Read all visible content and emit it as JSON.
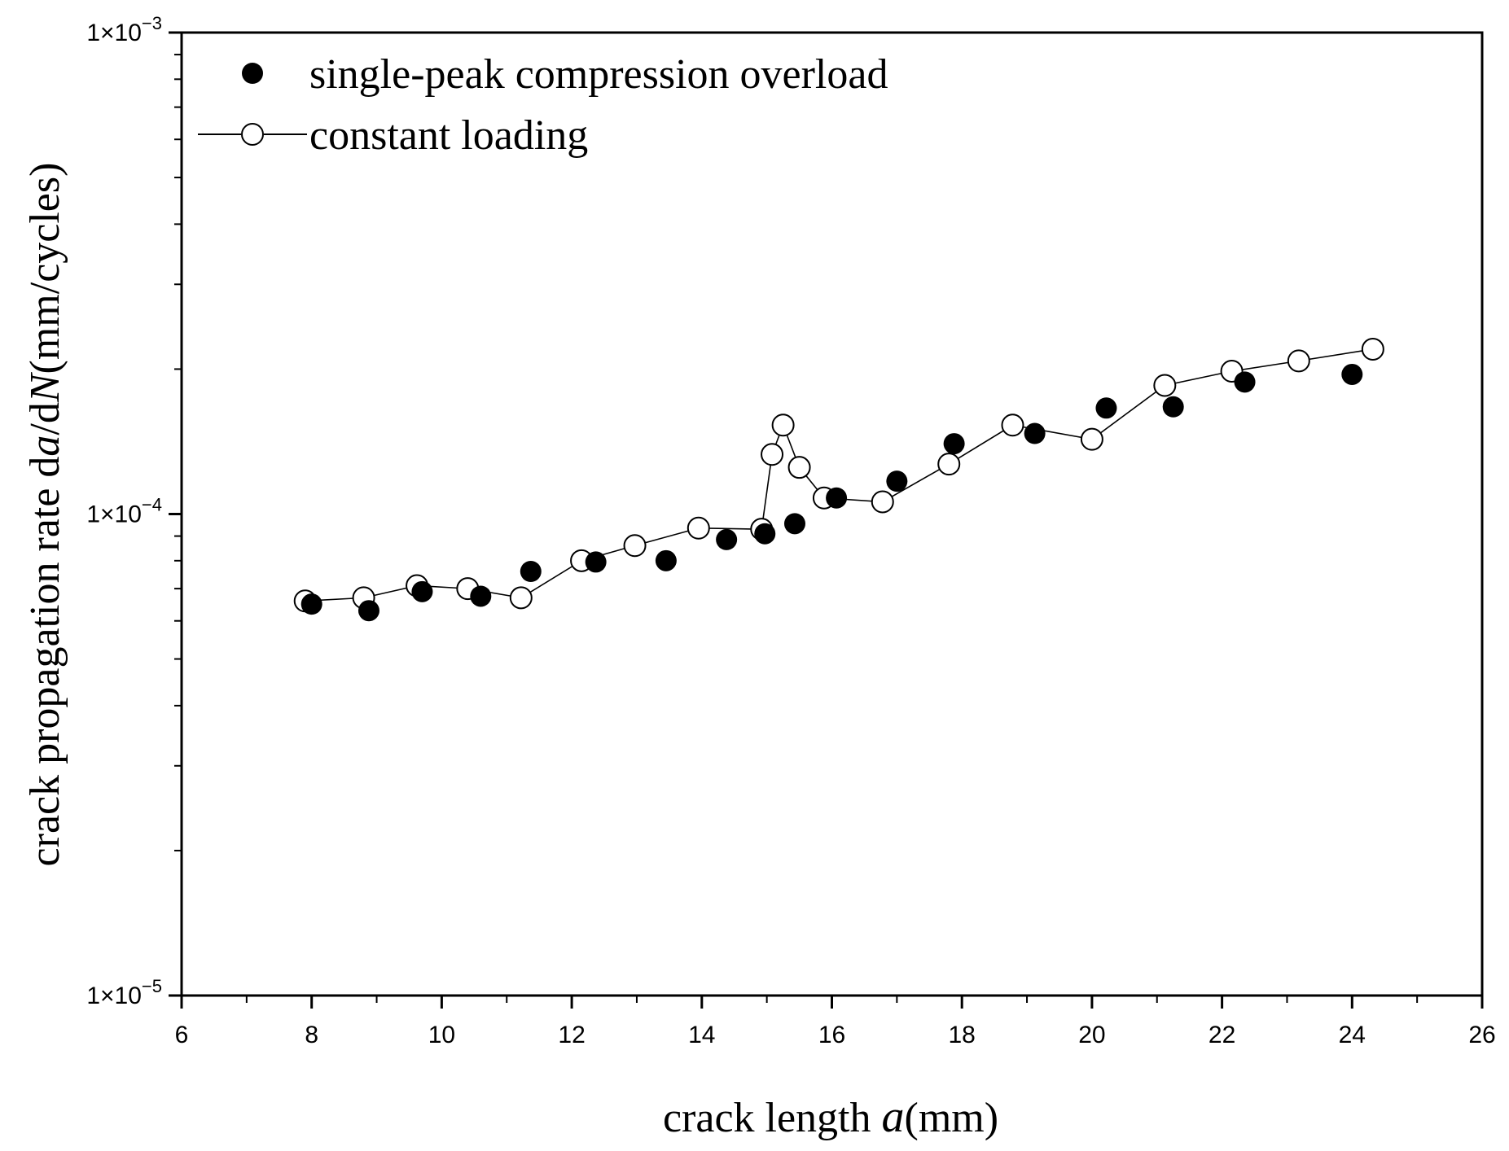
{
  "chart_data": {
    "type": "scatter",
    "title": "",
    "xlabel": {
      "prefix": "crack length ",
      "var": "a",
      "unit": "(mm)"
    },
    "ylabel": {
      "prefix": "crack propagation rate d",
      "var1": "a",
      "mid": "/d",
      "var2": "N",
      "unit": "(mm/cycles)"
    },
    "xlim": [
      6,
      26
    ],
    "ylim": [
      1e-05,
      0.001
    ],
    "yscale": "log",
    "x_ticks": [
      6,
      8,
      10,
      12,
      14,
      16,
      18,
      20,
      22,
      24,
      26
    ],
    "y_ticks": [
      {
        "value": 1e-05,
        "mantissa": "1",
        "times": "×",
        "base": "10",
        "exp": "−5"
      },
      {
        "value": 0.0001,
        "mantissa": "1",
        "times": "×",
        "base": "10",
        "exp": "−4"
      },
      {
        "value": 0.001,
        "mantissa": "1",
        "times": "×",
        "base": "10",
        "exp": "−3"
      }
    ],
    "legend_position": "top-left",
    "series": [
      {
        "name": "single-peak compression overload",
        "marker": "filled-circle",
        "line": false,
        "color": "#000000",
        "points": [
          {
            "x": 8.0,
            "y": 6.5e-05
          },
          {
            "x": 8.88,
            "y": 6.3e-05
          },
          {
            "x": 9.7,
            "y": 6.9e-05
          },
          {
            "x": 10.6,
            "y": 6.75e-05
          },
          {
            "x": 11.37,
            "y": 7.6e-05
          },
          {
            "x": 12.37,
            "y": 7.95e-05
          },
          {
            "x": 13.45,
            "y": 8e-05
          },
          {
            "x": 14.38,
            "y": 8.85e-05
          },
          {
            "x": 14.97,
            "y": 9.1e-05
          },
          {
            "x": 15.43,
            "y": 9.55e-05
          },
          {
            "x": 16.07,
            "y": 0.000108
          },
          {
            "x": 17.0,
            "y": 0.000117
          },
          {
            "x": 17.88,
            "y": 0.00014
          },
          {
            "x": 19.12,
            "y": 0.000147
          },
          {
            "x": 20.22,
            "y": 0.000166
          },
          {
            "x": 21.25,
            "y": 0.000167
          },
          {
            "x": 22.35,
            "y": 0.000188
          },
          {
            "x": 24.0,
            "y": 0.000195
          }
        ]
      },
      {
        "name": "constant loading",
        "marker": "open-circle",
        "line": true,
        "color": "#000000",
        "points": [
          {
            "x": 7.9,
            "y": 6.6e-05
          },
          {
            "x": 8.8,
            "y": 6.7e-05
          },
          {
            "x": 9.62,
            "y": 7.1e-05
          },
          {
            "x": 10.4,
            "y": 7e-05
          },
          {
            "x": 11.22,
            "y": 6.7e-05
          },
          {
            "x": 12.15,
            "y": 8e-05
          },
          {
            "x": 12.97,
            "y": 8.6e-05
          },
          {
            "x": 13.95,
            "y": 9.35e-05
          },
          {
            "x": 14.92,
            "y": 9.3e-05
          },
          {
            "x": 15.08,
            "y": 0.000133
          },
          {
            "x": 15.25,
            "y": 0.000153
          },
          {
            "x": 15.5,
            "y": 0.000125
          },
          {
            "x": 15.88,
            "y": 0.000108
          },
          {
            "x": 16.78,
            "y": 0.000106
          },
          {
            "x": 17.8,
            "y": 0.000127
          },
          {
            "x": 18.78,
            "y": 0.000153
          },
          {
            "x": 20.0,
            "y": 0.000143
          },
          {
            "x": 21.12,
            "y": 0.000185
          },
          {
            "x": 22.15,
            "y": 0.000198
          },
          {
            "x": 23.18,
            "y": 0.000208
          },
          {
            "x": 24.32,
            "y": 0.00022
          }
        ]
      }
    ]
  }
}
